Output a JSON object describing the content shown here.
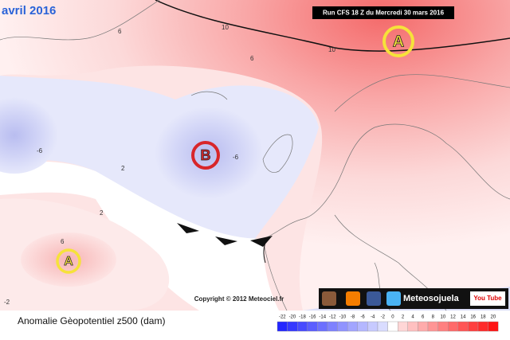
{
  "header": {
    "title": "avril 2016",
    "run": "Run CFS 18 Z du Mercredi 30 mars 2016"
  },
  "map": {
    "centers": [
      "A",
      "B",
      "A"
    ],
    "contour_labels": [
      "10",
      "10",
      "6",
      "-6",
      "-6",
      "6",
      "2",
      "2",
      "-2",
      "6"
    ],
    "copyright": "Copyright © 2012 Meteociel.fr",
    "brand": "Meteosojuela",
    "youtube": "You Tube"
  },
  "footer": {
    "caption": "Anomalie Gèopotentiel z500 (dam)",
    "scale": [
      -22,
      -20,
      -18,
      -16,
      -14,
      -12,
      -10,
      -8,
      -6,
      -4,
      -2,
      0,
      2,
      4,
      6,
      8,
      10,
      12,
      14,
      16,
      18,
      20
    ]
  }
}
